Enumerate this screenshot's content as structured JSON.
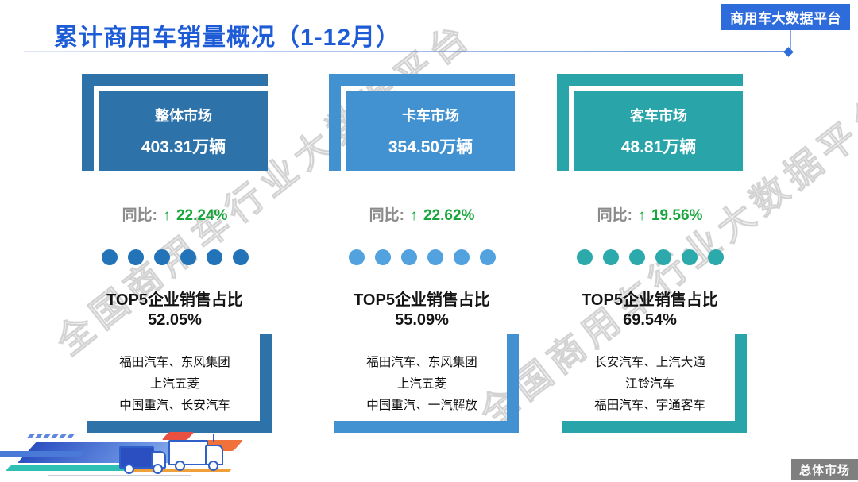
{
  "page": {
    "title": "累计商用车销量概况（1-12月）",
    "platform_badge": "商用车大数据平台",
    "footer_badge": "总体市场",
    "watermark": "全国商用车行业大数据平台"
  },
  "colors": {
    "title_blue": "#1d5cd6",
    "badge_blue": "#2e6bdb",
    "up_green": "#17a63c",
    "label_gray": "#8b8b8b",
    "footer_gray": "#7f7f7f"
  },
  "markets": [
    {
      "name": "整体市场",
      "volume": "403.31万辆",
      "yoy_label": "同比:",
      "yoy_arrow": "↑",
      "yoy_value": "22.24%",
      "dots": 6,
      "top5_title": "TOP5企业销售占比",
      "top5_share": "52.05%",
      "companies": [
        "福田汽车、东风集团",
        "上汽五菱",
        "中国重汽、长安汽车"
      ],
      "accent_color": "#2e72aa",
      "dot_color": "#2273b8"
    },
    {
      "name": "卡车市场",
      "volume": "354.50万辆",
      "yoy_label": "同比:",
      "yoy_arrow": "↑",
      "yoy_value": "22.62%",
      "dots": 6,
      "top5_title": "TOP5企业销售占比",
      "top5_share": "55.09%",
      "companies": [
        "福田汽车、东风集团",
        "上汽五菱",
        "中国重汽、一汽解放"
      ],
      "accent_color": "#4292d2",
      "dot_color": "#51a2de"
    },
    {
      "name": "客车市场",
      "volume": "48.81万辆",
      "yoy_label": "同比:",
      "yoy_arrow": "↑",
      "yoy_value": "19.56%",
      "dots": 6,
      "top5_title": "TOP5企业销售占比",
      "top5_share": "69.54%",
      "companies": [
        "长安汽车、上汽大通",
        "江铃汽车",
        "福田汽车、宇通客车"
      ],
      "accent_color": "#29a4a9",
      "dot_color": "#2ba9ab"
    }
  ]
}
